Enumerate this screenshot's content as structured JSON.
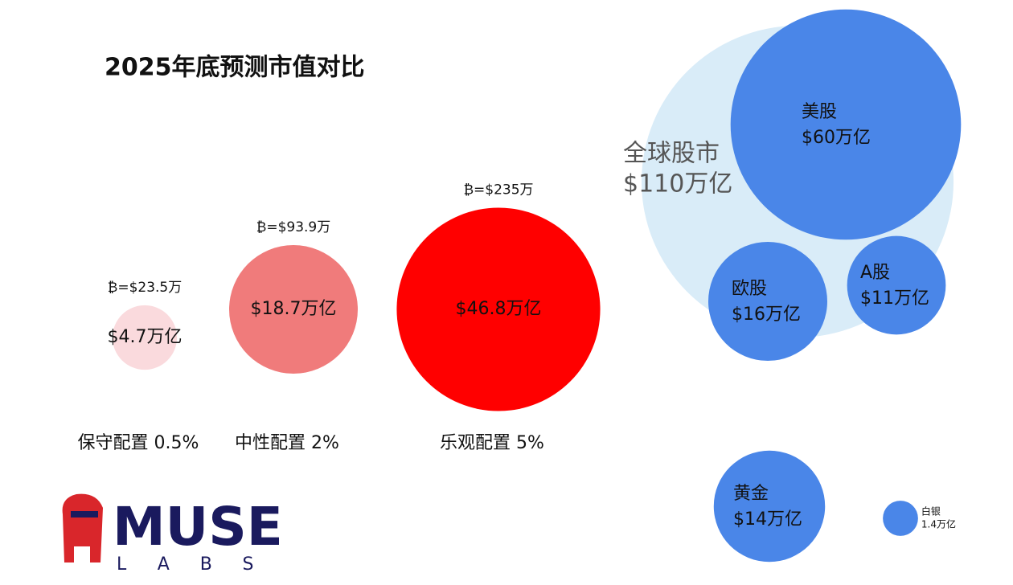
{
  "chart_data": [
    {
      "type": "bubble",
      "title": "2025年底预测市值对比",
      "categories": [
        "保守配置 0.5%",
        "中性配置 2%",
        "乐观配置 5%"
      ],
      "values": [
        4.7,
        18.7,
        46.8
      ],
      "value_labels": [
        "$4.7万亿",
        "$18.7万亿",
        "$46.8万亿"
      ],
      "annotations": [
        "₿=$23.5万",
        "₿=$93.9万",
        "₿=$235万"
      ],
      "colors": [
        "#fadadd",
        "#f07b7b",
        "#ff0000"
      ]
    },
    {
      "type": "bubble",
      "categories": [
        "全球股市",
        "美股",
        "欧股",
        "A股",
        "黄金",
        "白银"
      ],
      "values": [
        110,
        60,
        16,
        11,
        14,
        1.4
      ],
      "value_labels": [
        "$110万亿",
        "$60万亿",
        "$16万亿",
        "$11万亿",
        "$14万亿",
        "1.4万亿"
      ],
      "colors": [
        "#d9ecf8",
        "#4a86e8",
        "#4a86e8",
        "#4a86e8",
        "#4a86e8",
        "#4a86e8"
      ]
    }
  ],
  "logo": {
    "name": "MUSE",
    "sub": "LABS"
  }
}
